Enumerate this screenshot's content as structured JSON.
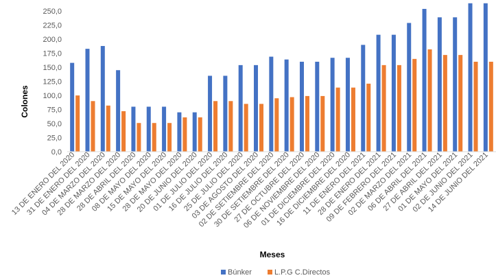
{
  "chart_data": {
    "type": "bar",
    "title": "",
    "xlabel": "Meses",
    "ylabel": "Colones",
    "ylim": [
      0,
      262.5
    ],
    "yticks": [
      "0,0",
      "25,0",
      "50,0",
      "75,0",
      "100,0",
      "125,0",
      "150,0",
      "175,0",
      "200,0",
      "225,0",
      "250,0"
    ],
    "grid": false,
    "legend_position": "bottom",
    "categories": [
      "13 DE ENERO DEL 2020",
      "31 DE ENERO DEL 2020",
      "04 DE MARZO DEL 2020",
      "28 DE MARZO DEL 2020",
      "28 DE ABRIL DEL 2020",
      "08 DE MAYO DEL 2020",
      "15 DE MAYO DEL 2020",
      "28 DE MAYO DEL 2020",
      "20 DE JUNIO DEL 2020",
      "01 DE JULIO DEL 2020",
      "16 DE JULIO DEL 2020",
      "25 DE JULIO DEL 2020",
      "03 DE AGOSTO DEL 2020",
      "02 DE SETIEMBRE DEL 2020",
      "30 DE SETIEMBRE DEL 2020",
      "27 DE OCTUBRE DEL 2020",
      "06 DE NOVIEMBRE DEL 2020",
      "01 DE DICIEMBRE DEL 2020",
      "16 DE DICIEMBRE DEL 2020",
      "11 DE ENERO DEL 2021",
      "28 DE ENERO DEL 2021",
      "09 DE FEBRERO DEL 2021",
      "02 DE MARZO DEL 2021",
      "06 DE ABRIL DEL 2021",
      "27 DE ABRIL DEL 2021",
      "01 DE MAYO DEL 2021",
      "02 DE JUNIO DEL 2021",
      "14 DE JUNIO DEL 2021"
    ],
    "series": [
      {
        "name": "Búnker",
        "color": "#4472C4",
        "values": [
          158,
          183,
          188,
          145,
          80,
          80,
          80,
          70,
          70,
          135,
          135,
          154,
          154,
          169,
          164,
          160,
          160,
          167,
          167,
          190,
          208,
          208,
          229,
          254,
          239,
          239,
          264,
          264
        ]
      },
      {
        "name": "L.P.G C.Directos",
        "color": "#ED7D31",
        "values": [
          100,
          90,
          82,
          72,
          51,
          51,
          51,
          61,
          61,
          90,
          90,
          85,
          85,
          95,
          97,
          99,
          99,
          114,
          114,
          121,
          154,
          154,
          165,
          182,
          172,
          172,
          160,
          160
        ]
      }
    ]
  }
}
